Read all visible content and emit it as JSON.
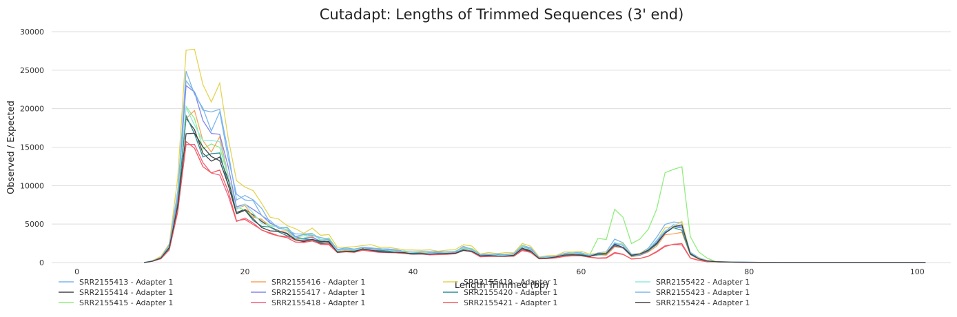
{
  "chart_data": {
    "type": "line",
    "title": "Cutadapt: Lengths of Trimmed Sequences (3' end)",
    "xlabel": "Length Trimmed (bp)",
    "ylabel": "Observed / Expected",
    "xlim": [
      -3,
      104
    ],
    "ylim": [
      0,
      30000
    ],
    "xticks": [
      0,
      20,
      40,
      60,
      80,
      100
    ],
    "yticks": [
      0,
      5000,
      10000,
      15000,
      20000,
      25000,
      30000
    ],
    "grid": true,
    "legend_position": "bottom",
    "x": [
      8,
      9,
      10,
      11,
      12,
      13,
      14,
      15,
      16,
      17,
      18,
      19,
      20,
      21,
      22,
      23,
      24,
      25,
      26,
      27,
      28,
      29,
      30,
      31,
      32,
      33,
      34,
      35,
      36,
      37,
      38,
      39,
      40,
      41,
      42,
      43,
      44,
      45,
      46,
      47,
      48,
      49,
      50,
      51,
      52,
      53,
      54,
      55,
      56,
      57,
      58,
      59,
      60,
      61,
      62,
      63,
      64,
      65,
      66,
      67,
      68,
      69,
      70,
      71,
      72,
      73,
      74,
      75,
      76,
      77,
      78,
      79,
      80,
      81,
      82,
      83,
      84,
      85,
      86,
      87,
      88,
      89,
      90,
      91,
      92,
      93,
      94,
      95,
      96,
      97,
      98,
      99,
      100,
      101
    ],
    "base_values": [
      0,
      200,
      600,
      2000,
      8000,
      20000,
      19000,
      16000,
      15000,
      15500,
      12000,
      7000,
      7200,
      6300,
      5400,
      4600,
      4200,
      3900,
      3200,
      3100,
      3300,
      2800,
      2800,
      1500,
      1600,
      1500,
      1800,
      1700,
      1600,
      1500,
      1400,
      1300,
      1200,
      1300,
      1200,
      1200,
      1200,
      1300,
      1800,
      1600,
      900,
      950,
      950,
      950,
      1000,
      1900,
      1600,
      600,
      650,
      750,
      1000,
      1100,
      1100,
      850,
      1050,
      1100,
      2300,
      2000,
      900,
      1000,
      1500,
      2500,
      3800,
      4300,
      4400,
      1100,
      500,
      200,
      120,
      80,
      60,
      50,
      40,
      30,
      30,
      30,
      20,
      20,
      20,
      20,
      20,
      20,
      20,
      20,
      20,
      20,
      20,
      20,
      20,
      20,
      20,
      20,
      20,
      20
    ],
    "series": [
      {
        "name": "SRR2155413 - Adapter 1",
        "color": "#7cb5ec",
        "peak": 24700,
        "scale": 1.13,
        "late": 1.25
      },
      {
        "name": "SRR2155414 - Adapter 1",
        "color": "#434348",
        "peak": 18700,
        "scale": 0.95,
        "late": 1.0
      },
      {
        "name": "SRR2155415 - Adapter 1",
        "color": "#90ed7d",
        "peak": 19500,
        "scale": 1.1,
        "late": 2.9
      },
      {
        "name": "SRR2155416 - Adapter 1",
        "color": "#f7a35c",
        "peak": 19900,
        "scale": 1.0,
        "late": 0.9
      },
      {
        "name": "SRR2155417 - Adapter 1",
        "color": "#8085e9",
        "peak": 22000,
        "scale": 1.05,
        "late": 1.0
      },
      {
        "name": "SRR2155418 - Adapter 1",
        "color": "#f15c80",
        "peak": 15400,
        "scale": 0.88,
        "late": 0.55
      },
      {
        "name": "SRR2155419 - Adapter 1",
        "color": "#e4d354",
        "peak": 28700,
        "scale": 1.3,
        "late": 1.15
      },
      {
        "name": "SRR2155420 - Adapter 1",
        "color": "#2b908f",
        "peak": 18000,
        "scale": 0.95,
        "late": 1.0
      },
      {
        "name": "SRR2155421 - Adapter 1",
        "color": "#f45b5b",
        "peak": 16500,
        "scale": 0.85,
        "late": 0.55
      },
      {
        "name": "SRR2155422 - Adapter 1",
        "color": "#91e8e1",
        "peak": 20000,
        "scale": 1.05,
        "late": 1.1
      },
      {
        "name": "SRR2155423 - Adapter 1",
        "color": "#7cb5ec",
        "peak": 24000,
        "scale": 1.12,
        "late": 1.1
      },
      {
        "name": "SRR2155424 - Adapter 1",
        "color": "#434348",
        "peak": 17800,
        "scale": 0.93,
        "late": 1.05
      }
    ]
  }
}
